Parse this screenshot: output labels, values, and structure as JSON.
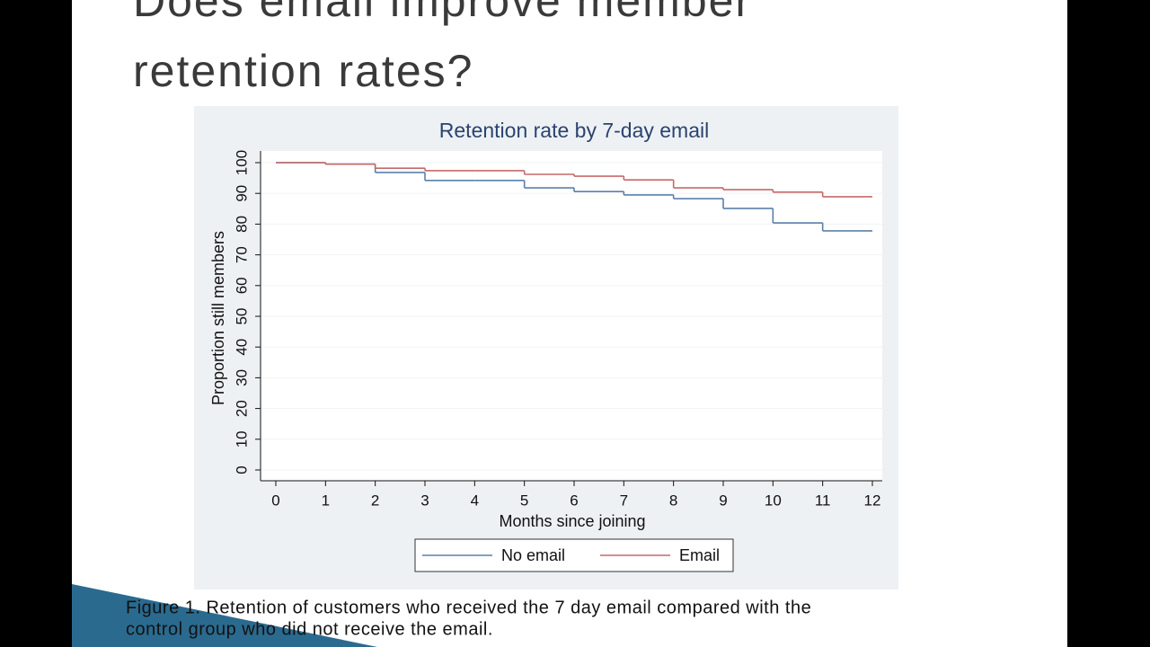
{
  "slide": {
    "title_lines": [
      "Does email improve member",
      "retention rates?"
    ],
    "caption_lines": [
      "Figure 1. Retention of customers who received the 7 day email compared with the",
      "control group who did not receive the email."
    ]
  },
  "chart_data": {
    "type": "step",
    "title": "Retention rate by 7-day email",
    "x_label": "Months since joining",
    "y_label": "Proportion still members",
    "x": [
      0,
      1,
      2,
      3,
      4,
      5,
      6,
      7,
      8,
      9,
      10,
      11,
      12
    ],
    "series": [
      {
        "name": "No email",
        "color": "#5b80a8",
        "values": [
          100,
          99.5,
          96.8,
          94.2,
          94.2,
          91.8,
          90.6,
          89.5,
          88.3,
          85.1,
          80.4,
          77.8,
          77.8
        ]
      },
      {
        "name": "Email",
        "color": "#c46a6a",
        "values": [
          100,
          99.5,
          98.2,
          97.4,
          97.4,
          96.2,
          95.6,
          94.4,
          91.8,
          91.2,
          90.4,
          88.9,
          88.9
        ]
      }
    ],
    "xlim": [
      0,
      12
    ],
    "xticks": [
      0,
      1,
      2,
      3,
      4,
      5,
      6,
      7,
      8,
      9,
      10,
      11,
      12
    ],
    "ylim": [
      0,
      100
    ],
    "yticks": [
      0,
      10,
      20,
      30,
      40,
      50,
      60,
      70,
      80,
      90,
      100
    ],
    "grid": true,
    "legend": "bottom"
  }
}
